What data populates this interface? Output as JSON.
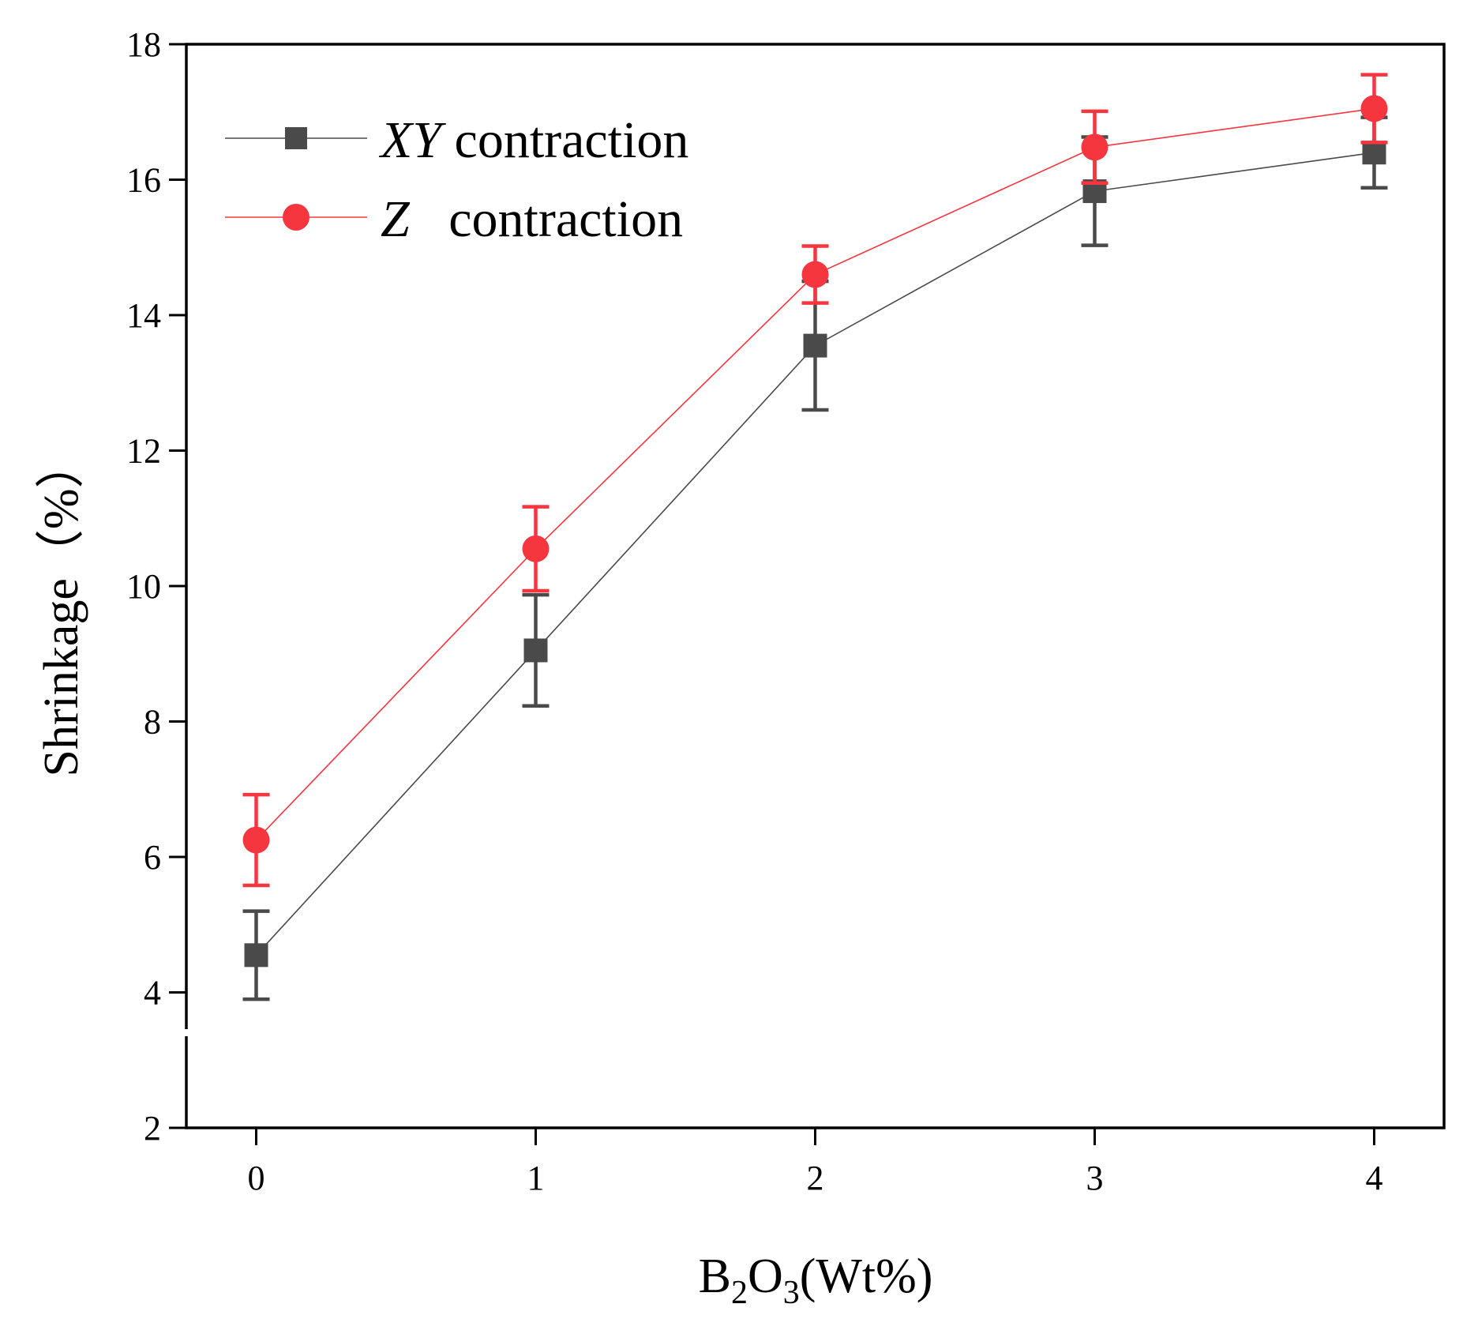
{
  "chart_data": {
    "type": "line",
    "title": "",
    "x": [
      0,
      1,
      2,
      3,
      4
    ],
    "x_tick_labels": [
      "0",
      "1",
      "2",
      "3",
      "4"
    ],
    "y_tick_labels": [
      "2",
      "4",
      "6",
      "8",
      "10",
      "12",
      "14",
      "16",
      "18"
    ],
    "xlim": [
      -0.25,
      4.25
    ],
    "ylim": [
      2,
      18
    ],
    "xlabel": {
      "base": "B",
      "sub1": "2",
      "mid": "O",
      "sub2": "3",
      "rest": "(Wt%)"
    },
    "ylabel": "Shrinkage（%）",
    "legend_position": "top-left",
    "series": [
      {
        "name_italic": "XY",
        "name_rest": " contraction",
        "color": "#4a4a4a",
        "marker": "square",
        "values": [
          4.55,
          9.05,
          13.55,
          15.83,
          16.4
        ],
        "errors": [
          0.65,
          0.82,
          0.95,
          0.8,
          0.52
        ]
      },
      {
        "name_italic": "Z",
        "name_rest": "   contraction",
        "color": "#f5363e",
        "marker": "circle",
        "values": [
          6.25,
          10.55,
          14.6,
          16.48,
          17.05
        ],
        "errors": [
          0.67,
          0.62,
          0.42,
          0.53,
          0.5
        ]
      }
    ]
  }
}
